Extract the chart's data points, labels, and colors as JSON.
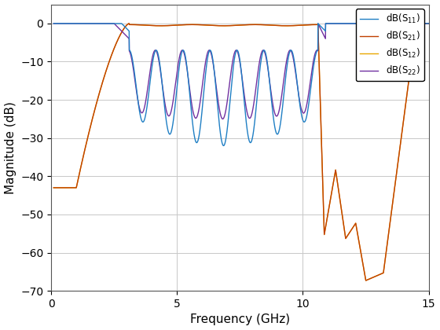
{
  "xlabel": "Frequency (GHz)",
  "ylabel": "Magnitude (dB)",
  "xlim": [
    0,
    15
  ],
  "ylim": [
    -70,
    5
  ],
  "yticks": [
    0,
    -10,
    -20,
    -30,
    -40,
    -50,
    -60,
    -70
  ],
  "xticks": [
    0,
    5,
    10,
    15
  ],
  "legend": [
    "dB(S$_{11}$)",
    "dB(S$_{21}$)",
    "dB(S$_{12}$)",
    "dB(S$_{22}$)"
  ],
  "colors_S11": "#1f7fc4",
  "colors_S21": "#c04000",
  "colors_S12": "#e8a800",
  "colors_S22": "#7030a0",
  "bg_color": "#ffffff",
  "grid_color": "#c8c8c8"
}
